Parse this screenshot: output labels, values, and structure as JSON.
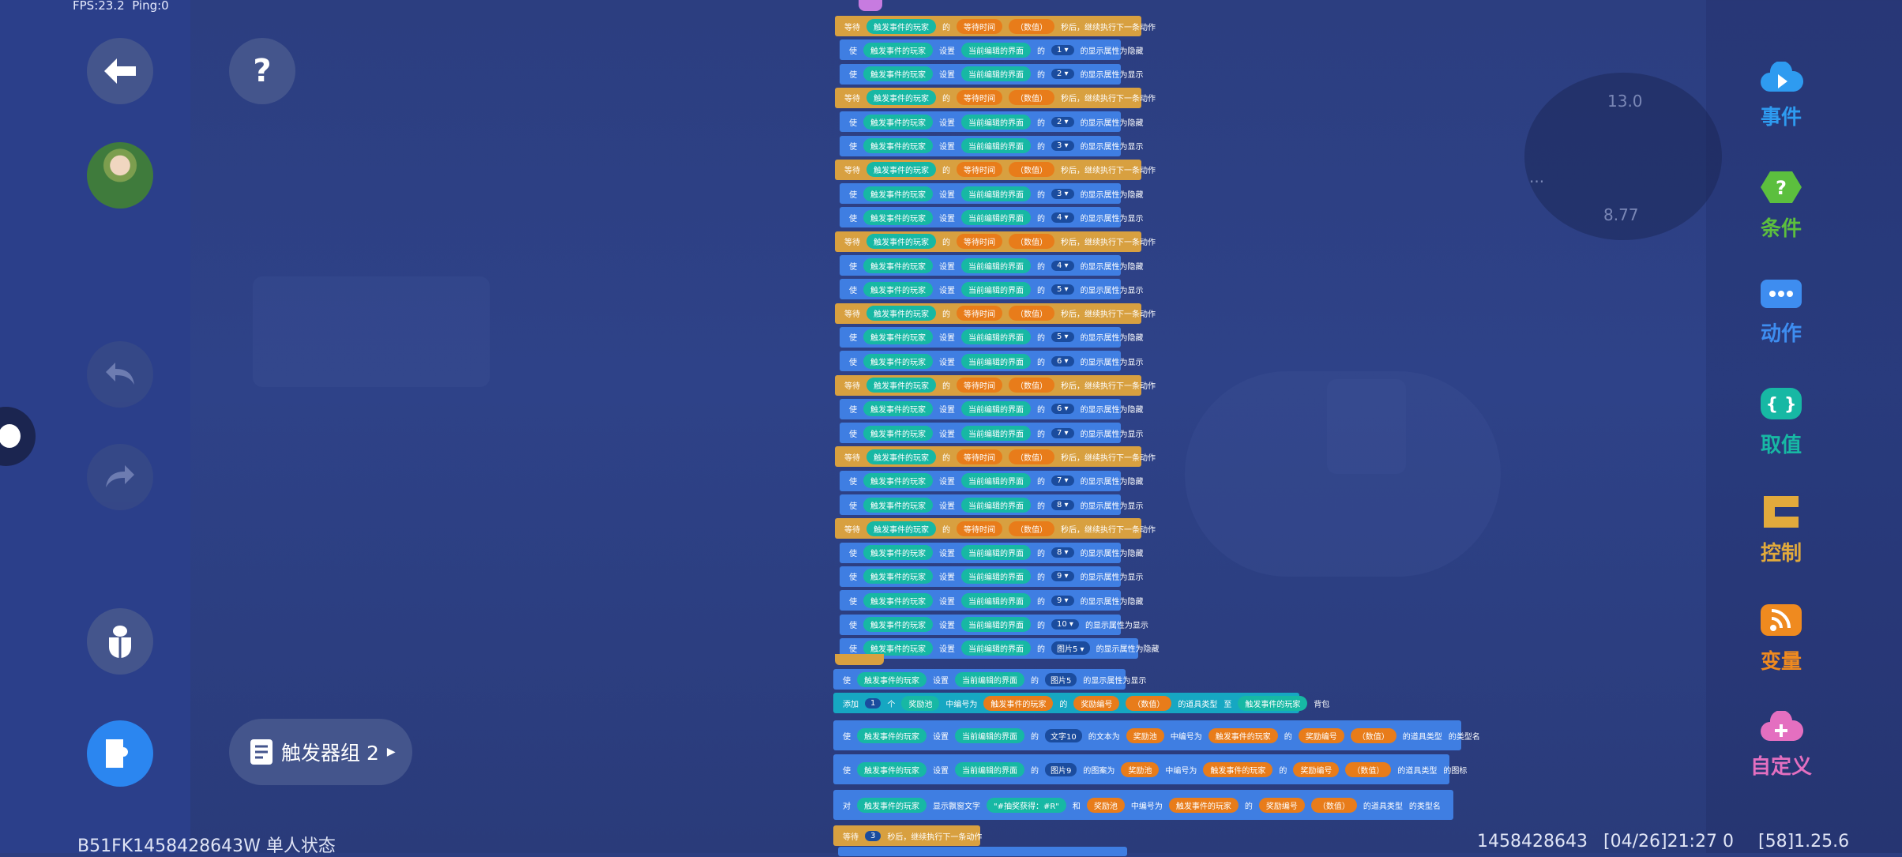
{
  "hud": {
    "fps": "FPS:23.2",
    "ping": "Ping:0"
  },
  "footer": {
    "left": "B51FK1458428643W 单人状态",
    "id": "1458428643",
    "date": "[04/26]21:27 0",
    "ver": "[58]1.25.6"
  },
  "minimap": {
    "top": "13.0",
    "bottom": "8.77",
    "dots": "···"
  },
  "trigger_group": {
    "label": "触发器组 2"
  },
  "categories": [
    {
      "label": "事件",
      "color": "#2e9bf0",
      "icon": "cloud-play-icon"
    },
    {
      "label": "条件",
      "color": "#5cbf3e",
      "icon": "hexagon-question-icon"
    },
    {
      "label": "动作",
      "color": "#3e8df0",
      "icon": "dots-block-icon"
    },
    {
      "label": "取值",
      "color": "#17b8a4",
      "icon": "braces-icon"
    },
    {
      "label": "控制",
      "color": "#e2aa3c",
      "icon": "c-block-icon"
    },
    {
      "label": "变量",
      "color": "#ef8a1f",
      "icon": "rss-icon"
    },
    {
      "label": "自定义",
      "color": "#e46fc0",
      "icon": "cloud-plus-icon"
    }
  ],
  "blocks": {
    "wait_prefix": "等待",
    "wait_player": "触发事件的玩家",
    "wait_of": "的",
    "wait_time": "等待时间",
    "wait_num": "（数值）",
    "wait_suffix": "秒后，继续执行下一条动作",
    "ui_make": "使",
    "ui_player": "触发事件的玩家",
    "ui_set": "设置",
    "ui_screen": "当前编辑的界面",
    "ui_of": "的",
    "ui_hide": "的显示属性为隐藏",
    "ui_show": "的显示属性为显示",
    "rows": [
      {
        "t": "wait"
      },
      {
        "t": "ui",
        "n": "1",
        "m": "hide"
      },
      {
        "t": "ui",
        "n": "2",
        "m": "show"
      },
      {
        "t": "wait"
      },
      {
        "t": "ui",
        "n": "2",
        "m": "hide"
      },
      {
        "t": "ui",
        "n": "3",
        "m": "show"
      },
      {
        "t": "wait"
      },
      {
        "t": "ui",
        "n": "3",
        "m": "hide"
      },
      {
        "t": "ui",
        "n": "4",
        "m": "show"
      },
      {
        "t": "wait"
      },
      {
        "t": "ui",
        "n": "4",
        "m": "hide"
      },
      {
        "t": "ui",
        "n": "5",
        "m": "show"
      },
      {
        "t": "wait"
      },
      {
        "t": "ui",
        "n": "5",
        "m": "hide"
      },
      {
        "t": "ui",
        "n": "6",
        "m": "show"
      },
      {
        "t": "wait"
      },
      {
        "t": "ui",
        "n": "6",
        "m": "hide"
      },
      {
        "t": "ui",
        "n": "7",
        "m": "show"
      },
      {
        "t": "wait"
      },
      {
        "t": "ui",
        "n": "7",
        "m": "hide"
      },
      {
        "t": "ui",
        "n": "8",
        "m": "show"
      },
      {
        "t": "wait"
      },
      {
        "t": "ui",
        "n": "8",
        "m": "hide"
      },
      {
        "t": "ui",
        "n": "9",
        "m": "show"
      },
      {
        "t": "ui",
        "n": "9",
        "m": "hide"
      },
      {
        "t": "ui",
        "n": "10",
        "m": "show"
      },
      {
        "t": "ui",
        "n": "图片5",
        "m": "hide"
      }
    ],
    "after": {
      "r1": [
        "使",
        "触发事件的玩家",
        "设置",
        "当前编辑的界面",
        "的",
        "图片5",
        "的显示属性为显示"
      ],
      "r2": [
        "添加",
        "1",
        "个",
        "奖励池",
        "中编号为",
        "触发事件的玩家",
        "的",
        "奖励编号",
        "（数值）",
        "的道具类型",
        "至",
        "触发事件的玩家",
        "背包"
      ],
      "r3": [
        "使",
        "触发事件的玩家",
        "设置",
        "当前编辑的界面",
        "的",
        "文字10",
        "的文本为",
        "奖励池",
        "中编号为",
        "触发事件的玩家",
        "的",
        "奖励编号",
        "（数值）",
        "的道具类型",
        "的类型名"
      ],
      "r4": [
        "使",
        "触发事件的玩家",
        "设置",
        "当前编辑的界面",
        "的",
        "图片9",
        "的图案为",
        "奖励池",
        "中编号为",
        "触发事件的玩家",
        "的",
        "奖励编号",
        "（数值）",
        "的道具类型",
        "的图标"
      ],
      "r5": [
        "对",
        "触发事件的玩家",
        "显示飘窗文字",
        "\"#抽奖获得：#R\"",
        "和",
        "奖励池",
        "中编号为",
        "触发事件的玩家",
        "的",
        "奖励编号",
        "（数值）",
        "的道具类型",
        "的类型名"
      ],
      "r6": [
        "等待",
        "3",
        "秒后，继续执行下一条动作"
      ]
    }
  }
}
